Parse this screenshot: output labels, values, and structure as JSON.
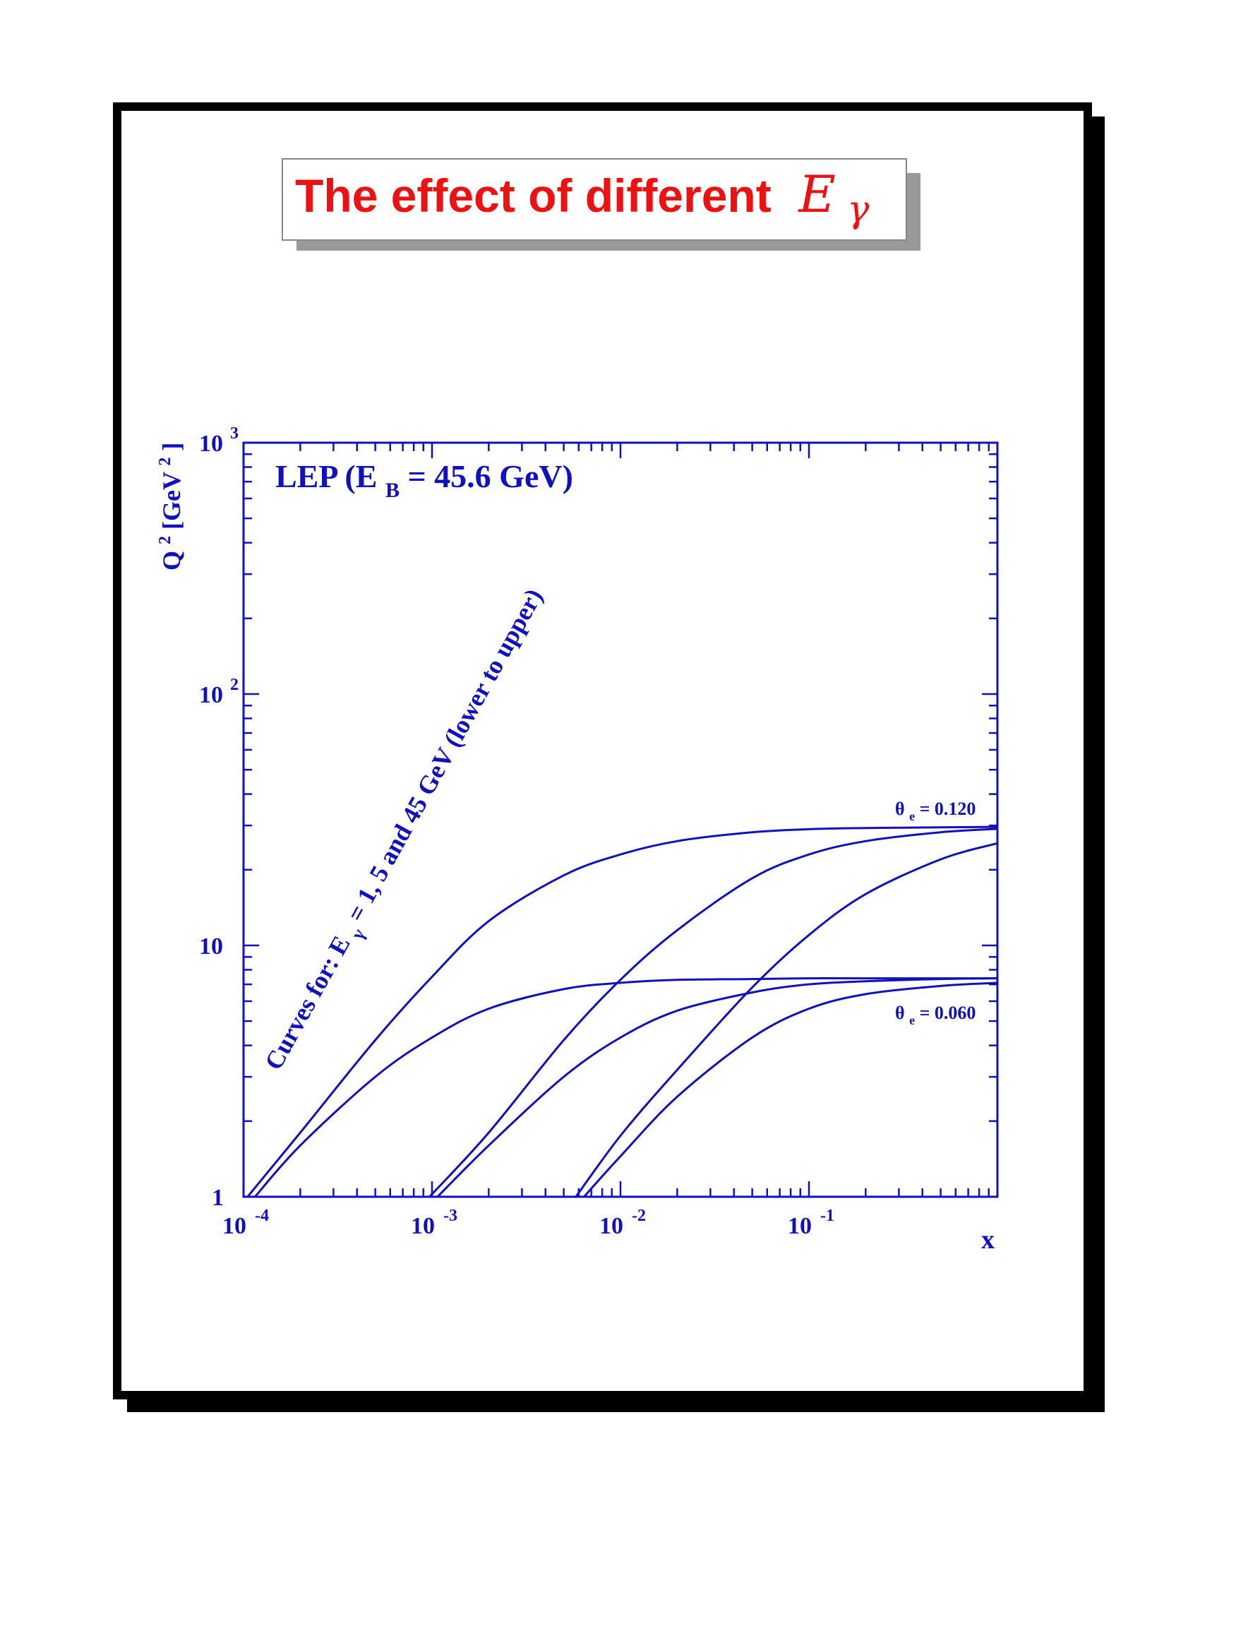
{
  "slide": {
    "title_text": "The effect of different",
    "title_math_symbol": "E",
    "title_math_subscript": "γ"
  },
  "colors": {
    "title": "#ee1111",
    "plot": "#1010c0",
    "frame": "#000000",
    "title_shadow": "#999999"
  },
  "chart_data": {
    "type": "line",
    "title": "",
    "xlabel": "x",
    "ylabel": "Q²[GeV²]",
    "ylabel_parts": {
      "base": "Q",
      "sup1": "2",
      "bracket_open": "[GeV",
      "sup2": "2",
      "bracket_close": "]"
    },
    "xscale": "log",
    "yscale": "log",
    "xlim": [
      0.0001,
      1
    ],
    "ylim": [
      1,
      1000
    ],
    "x_tick_labels": [
      {
        "value": 0.0001,
        "base": "10",
        "exp": "-4"
      },
      {
        "value": 0.001,
        "base": "10",
        "exp": "-3"
      },
      {
        "value": 0.01,
        "base": "10",
        "exp": "-2"
      },
      {
        "value": 0.1,
        "base": "10",
        "exp": "-1"
      }
    ],
    "y_tick_labels": [
      {
        "value": 1,
        "base": "1",
        "exp": ""
      },
      {
        "value": 10,
        "base": "10",
        "exp": ""
      },
      {
        "value": 100,
        "base": "10",
        "exp": "2"
      },
      {
        "value": 1000,
        "base": "10",
        "exp": "3"
      }
    ],
    "annotations": {
      "beam": {
        "prefix": "LEP (E",
        "sub": "B",
        "suffix": " = 45.6 GeV)"
      },
      "curves_note": {
        "prefix": "Curves for: E",
        "sub": "γ",
        "suffix": " = 1, 5 and 45 GeV (lower to upper)"
      },
      "theta_upper": {
        "symbol": "θ",
        "sub": "e",
        "value": " = 0.120"
      },
      "theta_lower": {
        "symbol": "θ",
        "sub": "e",
        "value": " = 0.060"
      }
    },
    "series": [
      {
        "x": [
          0.000115,
          0.0002,
          0.0005,
          0.001,
          0.002,
          0.005,
          0.01,
          0.02,
          0.05,
          0.1,
          0.2,
          0.5,
          1.0
        ],
        "y": [
          1.0,
          1.6,
          3.0,
          4.3,
          5.6,
          6.7,
          7.1,
          7.3,
          7.35,
          7.4,
          7.4,
          7.4,
          7.4
        ]
      },
      {
        "x": [
          0.000105,
          0.0002,
          0.0005,
          0.001,
          0.002,
          0.005,
          0.01,
          0.02,
          0.05,
          0.1,
          0.2,
          0.5,
          1.0
        ],
        "y": [
          1.0,
          1.8,
          4.2,
          7.5,
          12.5,
          19.0,
          23.0,
          26.0,
          28.2,
          29.0,
          29.3,
          29.5,
          29.6
        ]
      },
      {
        "x": [
          0.00107,
          0.002,
          0.005,
          0.01,
          0.02,
          0.05,
          0.1,
          0.2,
          0.5,
          1.0
        ],
        "y": [
          1.0,
          1.6,
          3.0,
          4.3,
          5.5,
          6.5,
          7.0,
          7.2,
          7.35,
          7.4
        ]
      },
      {
        "x": [
          0.00097,
          0.002,
          0.005,
          0.01,
          0.02,
          0.05,
          0.1,
          0.2,
          0.5,
          1.0
        ],
        "y": [
          1.0,
          1.8,
          4.2,
          7.3,
          11.5,
          18.5,
          23.0,
          26.0,
          28.2,
          29.1
        ]
      },
      {
        "x": [
          0.0064,
          0.01,
          0.02,
          0.05,
          0.1,
          0.2,
          0.5,
          1.0
        ],
        "y": [
          1.0,
          1.45,
          2.5,
          4.3,
          5.6,
          6.4,
          6.9,
          7.1
        ]
      },
      {
        "x": [
          0.0058,
          0.01,
          0.02,
          0.05,
          0.1,
          0.2,
          0.5,
          1.0
        ],
        "y": [
          1.0,
          1.75,
          3.2,
          6.8,
          11.0,
          16.0,
          22.0,
          25.5
        ]
      }
    ]
  }
}
